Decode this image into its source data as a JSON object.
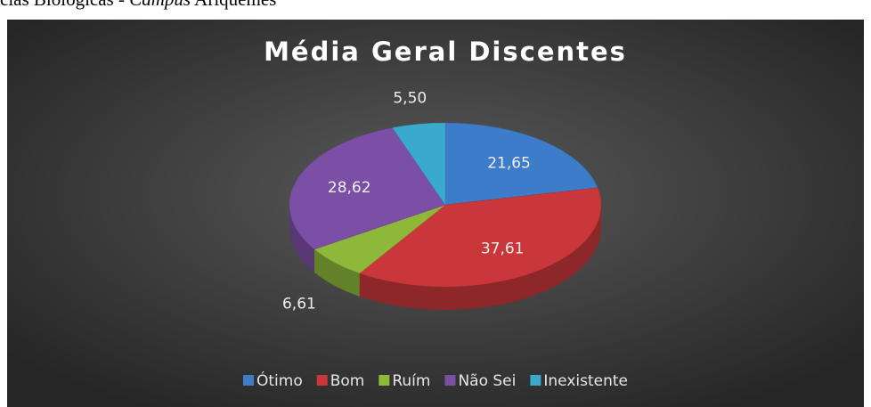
{
  "caption": [
    "cias Biológicas - ",
    "Campus",
    " Ariquemes"
  ],
  "chart_data": {
    "type": "pie3d",
    "title": "Média Geral Discentes",
    "categories": [
      "Ótimo",
      "Bom",
      "Ruím",
      "Não Sei",
      "Inexistente"
    ],
    "values": [
      21.65,
      37.61,
      6.61,
      28.62,
      5.5
    ],
    "value_labels": [
      "21,65",
      "37,61",
      "6,61",
      "28,62",
      "5,50"
    ],
    "colors": [
      "#3d7cc9",
      "#c9373a",
      "#8db83a",
      "#7c4fa6",
      "#3aaacc"
    ],
    "legend": "bottom"
  }
}
